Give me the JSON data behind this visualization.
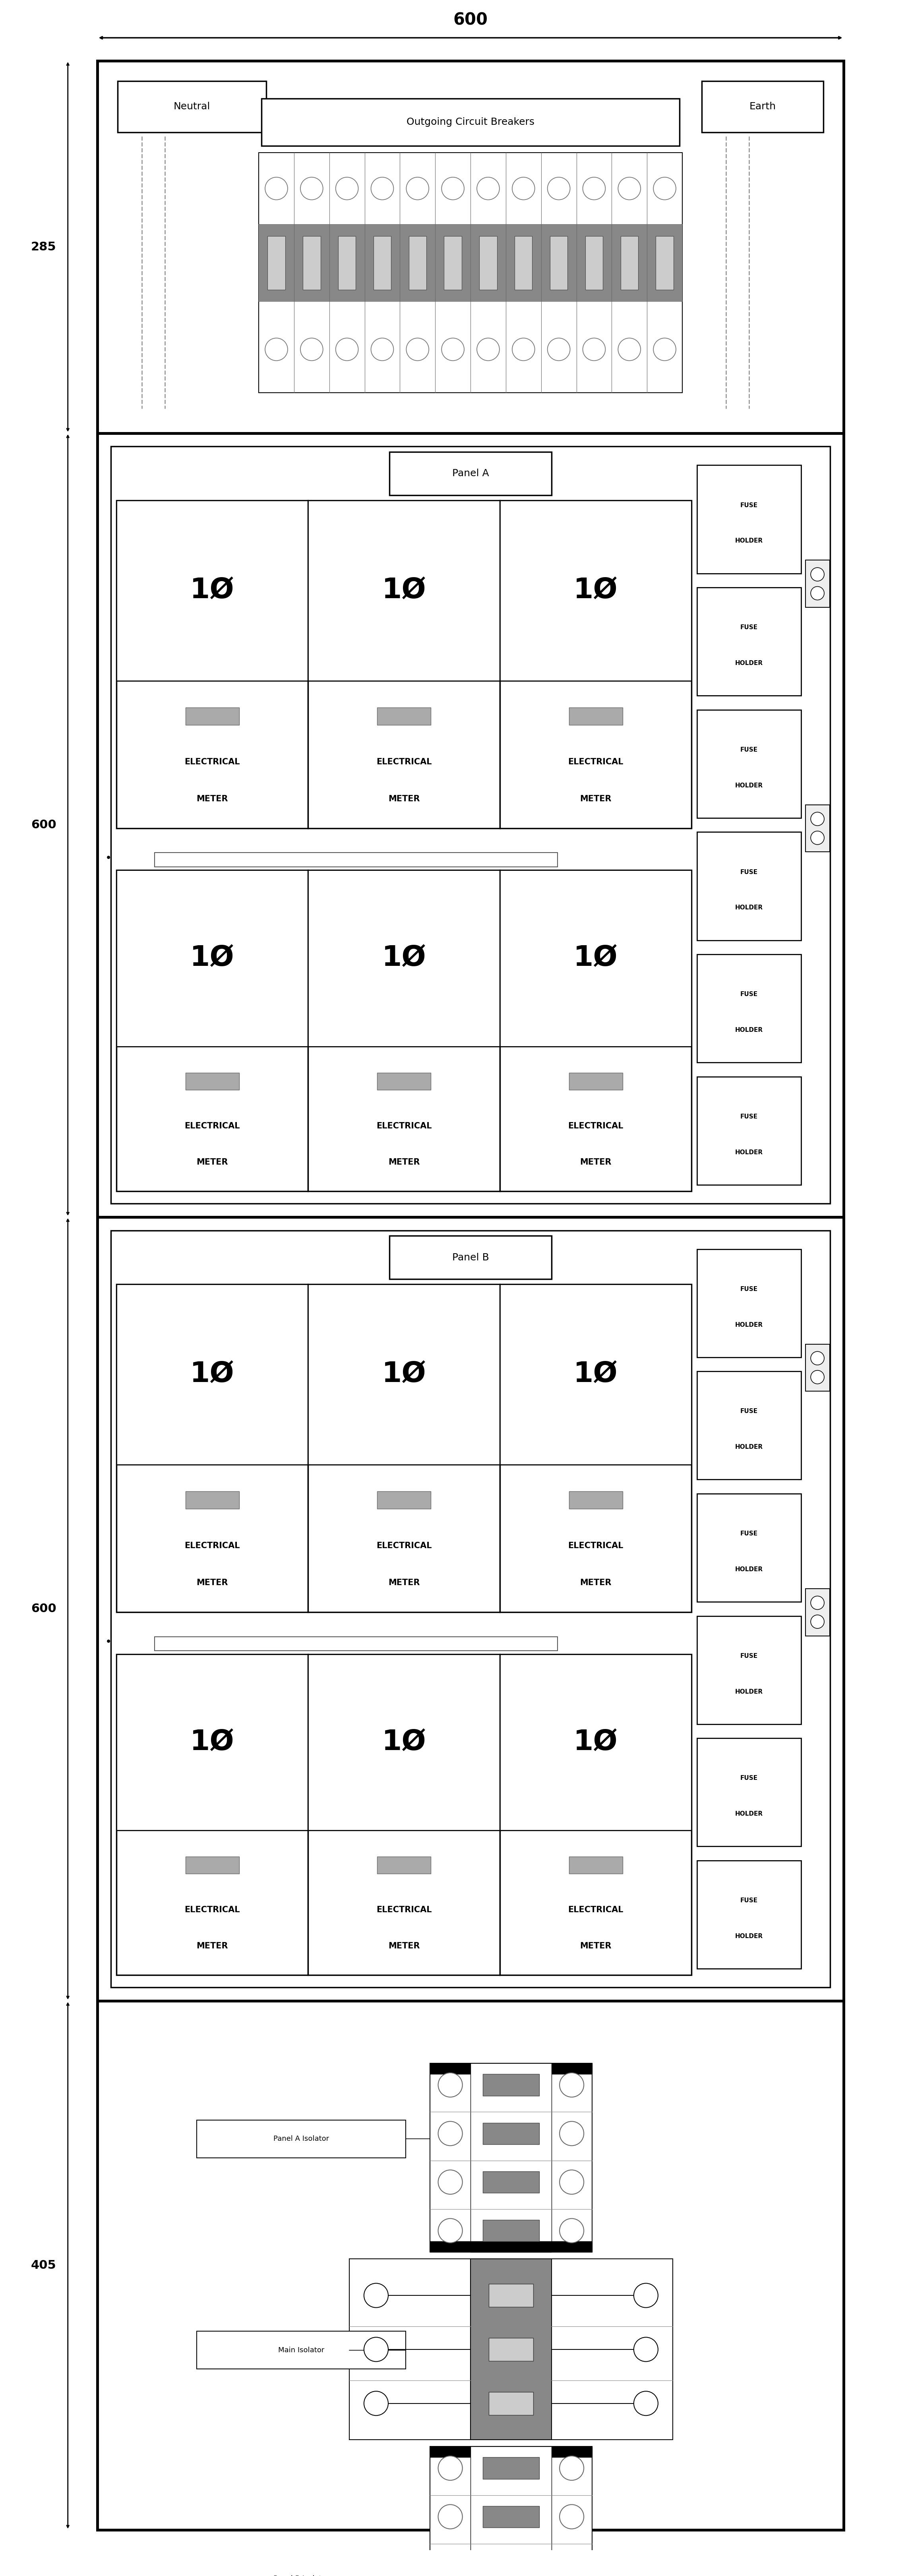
{
  "fig_width": 22.9,
  "fig_height": 64.81,
  "bg_color": "#ffffff",
  "dim_600": "600",
  "dim_285": "285",
  "dim_600a": "600",
  "dim_600b": "600",
  "dim_405": "405",
  "panel_a_label": "Panel A",
  "panel_b_label": "Panel B",
  "neutral_label": "Neutral",
  "earth_label": "Earth",
  "ocb_label": "Outgoing Circuit Breakers",
  "meter_label_line1": "ELECTRICAL",
  "meter_label_line2": "METER",
  "phase_label": "1Ø",
  "fuse_label_line1": "FUSE",
  "fuse_label_line2": "HOLDER",
  "panel_a_iso": "Panel A Isolator",
  "main_iso": "Main Isolator",
  "panel_b_iso": "Panel B Isolator",
  "num_breakers": 12,
  "colors": {
    "black": "#000000",
    "white": "#ffffff",
    "gray": "#888888",
    "light_gray": "#cccccc",
    "mid_gray": "#aaaaaa",
    "dark_gray": "#666666",
    "dashed": "#999999"
  }
}
